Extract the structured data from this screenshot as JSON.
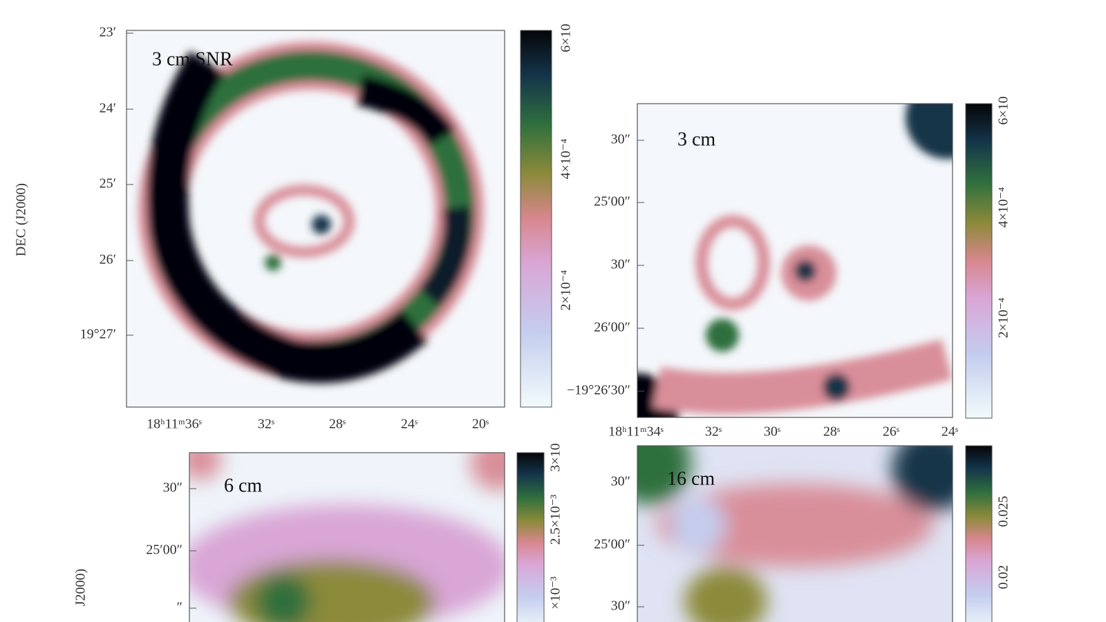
{
  "figure": {
    "ylabel": "DEC (J2000)",
    "ylabel_lower": "J2000)"
  },
  "panels": [
    {
      "label": "3 cm SNR",
      "yticks": [
        "23′",
        "24′",
        "25′",
        "26′",
        "19°27′"
      ],
      "xticks": [
        "18ʰ11ᵐ36ˢ",
        "32ˢ",
        "28ˢ",
        "24ˢ",
        "20ˢ"
      ],
      "colorbar_ticks": [
        "6×10",
        "4×10⁻⁴",
        "2×10⁻⁴"
      ]
    },
    {
      "label": "3 cm",
      "yticks": [
        "30″",
        "25′00″",
        "30″",
        "26′00″",
        "−19°26′30″"
      ],
      "xticks": [
        "18ʰ11ᵐ34ˢ",
        "32ˢ",
        "30ˢ",
        "28ˢ",
        "26ˢ",
        "24ˢ"
      ],
      "colorbar_ticks": [
        "6×10",
        "4×10⁻⁴",
        "2×10⁻⁴"
      ]
    },
    {
      "label": "6 cm",
      "yticks": [
        "30″",
        "25′00″",
        "″"
      ],
      "xticks": [],
      "colorbar_ticks": [
        "3×10",
        "2.5×10⁻³",
        "×10⁻³"
      ]
    },
    {
      "label": "16 cm",
      "yticks": [
        "30″",
        "25′00″",
        "30″"
      ],
      "xticks": [],
      "colorbar_ticks": [
        "0.025",
        "0.02"
      ]
    }
  ]
}
